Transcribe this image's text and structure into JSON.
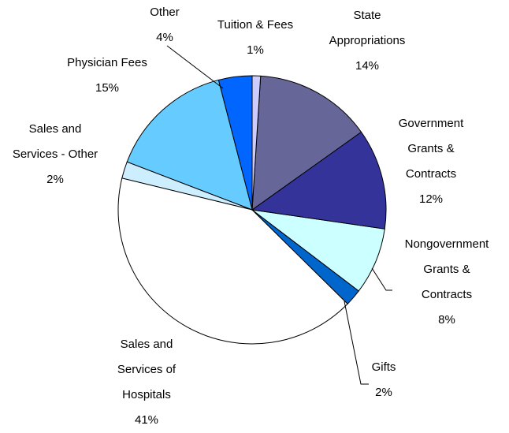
{
  "chart_data": {
    "type": "pie",
    "categories": [
      "Tuition & Fees",
      "State Appropriations",
      "Government Grants & Contracts",
      "Nongovernment Grants & Contracts",
      "Gifts",
      "Sales and Services of Hospitals",
      "Sales and Services - Other",
      "Physician Fees",
      "Other"
    ],
    "values": [
      1,
      14,
      12,
      8,
      2,
      41,
      2,
      15,
      4
    ],
    "value_labels": [
      "1%",
      "14%",
      "12%",
      "8%",
      "2%",
      "41%",
      "2%",
      "15%",
      "4%"
    ],
    "colors": [
      "#ccccff",
      "#666699",
      "#333399",
      "#ccffff",
      "#0066cc",
      "#ffffff",
      "#cceeff",
      "#66ccff",
      "#0066ff"
    ]
  }
}
